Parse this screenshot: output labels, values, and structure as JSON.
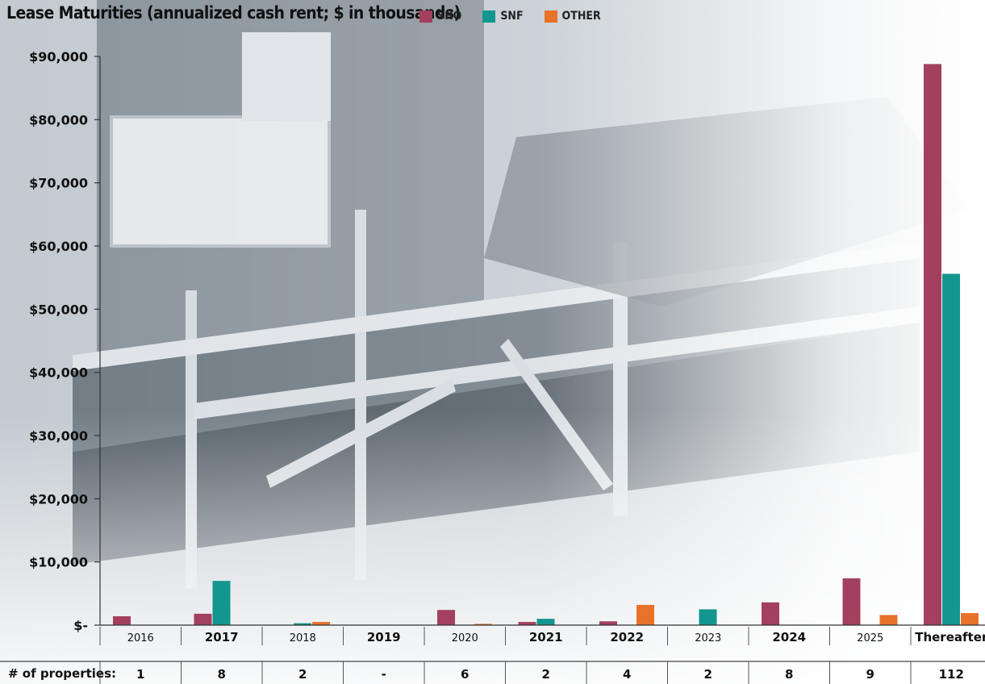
{
  "chart_data": {
    "type": "bar",
    "title": "Lease Maturities (annualized cash rent; $ in thousands)",
    "categories": [
      "2016",
      "2017",
      "2018",
      "2019",
      "2020",
      "2021",
      "2022",
      "2023",
      "2024",
      "2025",
      "Thereafter"
    ],
    "bold_categories": [
      "2017",
      "2019",
      "2021",
      "2022",
      "2024",
      "Thereafter"
    ],
    "series": [
      {
        "name": "SHO",
        "color": "#a3405f",
        "values": [
          1400,
          1800,
          0,
          0,
          2400,
          500,
          600,
          0,
          3600,
          7400,
          88800
        ]
      },
      {
        "name": "SNF",
        "color": "#12968f",
        "values": [
          0,
          7000,
          300,
          0,
          0,
          1000,
          0,
          2500,
          0,
          0,
          55600
        ]
      },
      {
        "name": "OTHER",
        "color": "#e8722a",
        "values": [
          0,
          0,
          500,
          0,
          200,
          0,
          3200,
          0,
          0,
          1600,
          1900
        ]
      }
    ],
    "ylim": [
      0,
      90000
    ],
    "y_ticks": [
      {
        "value": 0,
        "label": "$-"
      },
      {
        "value": 10000,
        "label": "$10,000"
      },
      {
        "value": 20000,
        "label": "$20,000"
      },
      {
        "value": 30000,
        "label": "$30,000"
      },
      {
        "value": 40000,
        "label": "$40,000"
      },
      {
        "value": 50000,
        "label": "$50,000"
      },
      {
        "value": 60000,
        "label": "$60,000"
      },
      {
        "value": 70000,
        "label": "$70,000"
      },
      {
        "value": 80000,
        "label": "$80,000"
      },
      {
        "value": 90000,
        "label": "$90,000"
      }
    ],
    "legend_position": "top",
    "grid": false,
    "properties_label": "# of properties:",
    "properties": [
      "1",
      "8",
      "2",
      "-",
      "6",
      "2",
      "4",
      "2",
      "8",
      "9",
      "112"
    ]
  }
}
